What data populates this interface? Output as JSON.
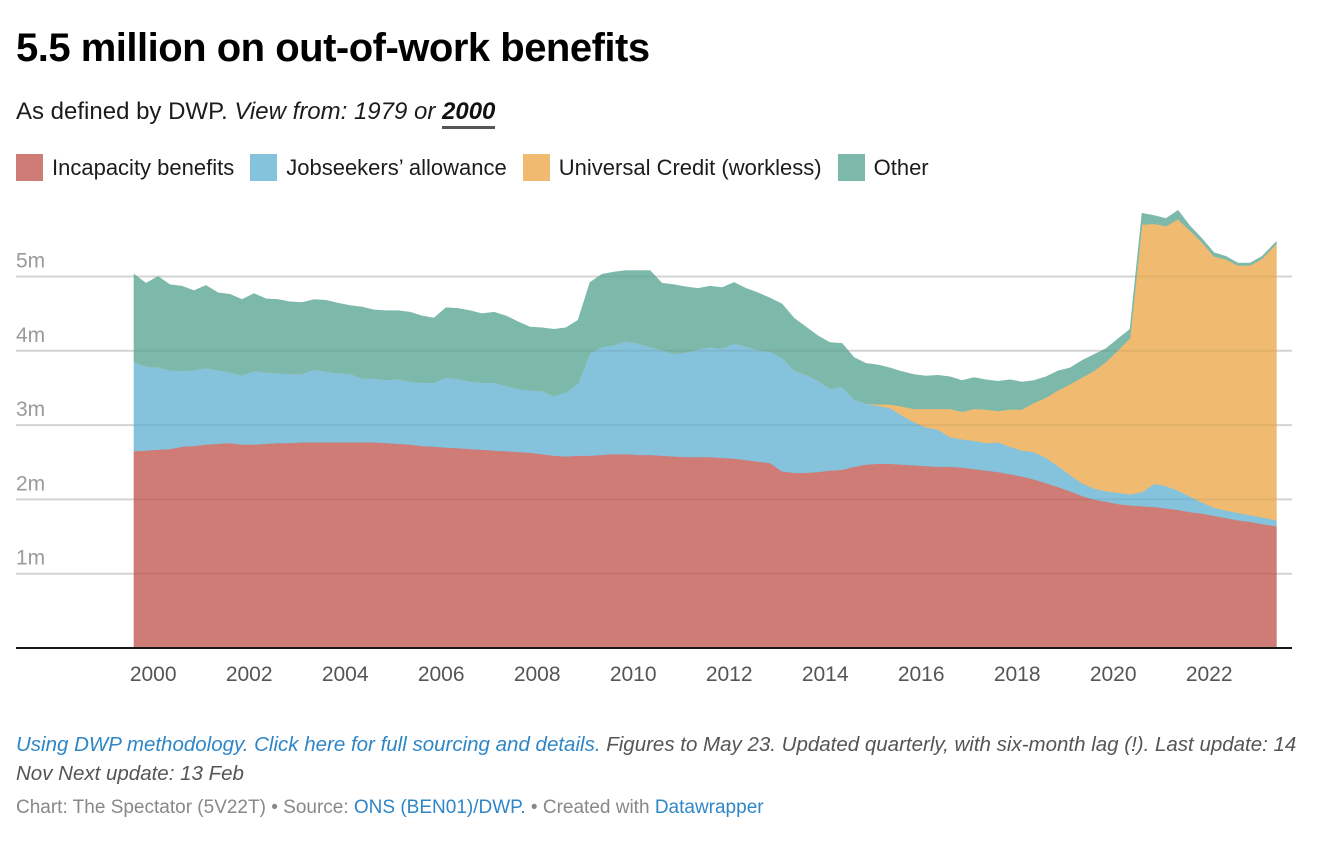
{
  "header": {
    "title": "5.5 million on out-of-work benefits",
    "subtitle_plain": "As defined by DWP.",
    "subtitle_view_from": "View from:",
    "subtitle_option_1979": "1979",
    "subtitle_or": "or",
    "subtitle_option_2000": "2000",
    "selected_view": "2000"
  },
  "legend": [
    {
      "label": "Incapacity benefits",
      "color": "#cf7b76"
    },
    {
      "label": "Jobseekers’ allowance",
      "color": "#85c2dc"
    },
    {
      "label": "Universal Credit (workless)",
      "color": "#f0bb70"
    },
    {
      "label": "Other",
      "color": "#7db9ab"
    }
  ],
  "notes": {
    "link_text": "Using DWP methodology. Click here for full sourcing and details.",
    "text": " Figures to May 23. Updated quarterly, with six-month lag (!). Last update: 14 Nov Next update: 13 Feb"
  },
  "footer": {
    "chart_prefix": "Chart: The Spectator (5V22T) • Source: ",
    "source_link": "ONS (BEN01)/DWP.",
    "created_prefix": " • Created with ",
    "tool_link": "Datawrapper"
  },
  "chart_data": {
    "type": "area",
    "stacked": true,
    "title": "5.5 million on out-of-work benefits",
    "xlabel": "",
    "ylabel": "",
    "x_ticks": [
      "2000",
      "2002",
      "2004",
      "2006",
      "2008",
      "2010",
      "2012",
      "2014",
      "2016",
      "2018",
      "2020",
      "2022"
    ],
    "y_ticks": [
      {
        "value": 1,
        "label": "1m"
      },
      {
        "value": 2,
        "label": "2m"
      },
      {
        "value": 3,
        "label": "3m"
      },
      {
        "value": 4,
        "label": "4m"
      },
      {
        "value": 5,
        "label": "5m"
      }
    ],
    "xlim": [
      1998.9,
      2023.8
    ],
    "ylim": [
      0,
      6
    ],
    "grid": true,
    "legend_position": "top-left",
    "units": "millions",
    "x": [
      1999.6,
      1999.85,
      2000.1,
      2000.35,
      2000.6,
      2000.85,
      2001.1,
      2001.35,
      2001.6,
      2001.85,
      2002.1,
      2002.35,
      2002.6,
      2002.85,
      2003.1,
      2003.35,
      2003.6,
      2003.85,
      2004.1,
      2004.35,
      2004.6,
      2004.85,
      2005.1,
      2005.35,
      2005.6,
      2005.85,
      2006.1,
      2006.35,
      2006.6,
      2006.85,
      2007.1,
      2007.35,
      2007.6,
      2007.85,
      2008.1,
      2008.35,
      2008.6,
      2008.85,
      2009.1,
      2009.35,
      2009.6,
      2009.85,
      2010.1,
      2010.35,
      2010.6,
      2010.85,
      2011.1,
      2011.35,
      2011.6,
      2011.85,
      2012.1,
      2012.35,
      2012.6,
      2012.85,
      2013.1,
      2013.35,
      2013.6,
      2013.85,
      2014.1,
      2014.35,
      2014.6,
      2014.85,
      2015.1,
      2015.35,
      2015.6,
      2015.85,
      2016.1,
      2016.35,
      2016.6,
      2016.85,
      2017.1,
      2017.35,
      2017.6,
      2017.85,
      2018.1,
      2018.35,
      2018.6,
      2018.85,
      2019.1,
      2019.35,
      2019.6,
      2019.85,
      2020.1,
      2020.35,
      2020.6,
      2020.85,
      2021.1,
      2021.35,
      2021.6,
      2021.85,
      2022.1,
      2022.35,
      2022.6,
      2022.85,
      2023.1,
      2023.4
    ],
    "series": [
      {
        "name": "Incapacity benefits",
        "color": "#cf7b76",
        "values": [
          2.65,
          2.66,
          2.67,
          2.68,
          2.71,
          2.72,
          2.74,
          2.75,
          2.76,
          2.74,
          2.74,
          2.75,
          2.76,
          2.76,
          2.77,
          2.77,
          2.77,
          2.77,
          2.77,
          2.77,
          2.77,
          2.76,
          2.75,
          2.74,
          2.72,
          2.71,
          2.7,
          2.69,
          2.68,
          2.67,
          2.66,
          2.65,
          2.64,
          2.63,
          2.61,
          2.59,
          2.58,
          2.59,
          2.59,
          2.6,
          2.61,
          2.61,
          2.6,
          2.6,
          2.59,
          2.58,
          2.57,
          2.57,
          2.57,
          2.56,
          2.55,
          2.53,
          2.51,
          2.49,
          2.38,
          2.36,
          2.36,
          2.37,
          2.39,
          2.4,
          2.44,
          2.47,
          2.48,
          2.48,
          2.47,
          2.46,
          2.45,
          2.44,
          2.44,
          2.43,
          2.41,
          2.39,
          2.37,
          2.34,
          2.31,
          2.27,
          2.22,
          2.17,
          2.11,
          2.05,
          2.0,
          1.97,
          1.94,
          1.92,
          1.91,
          1.9,
          1.88,
          1.86,
          1.83,
          1.81,
          1.78,
          1.75,
          1.72,
          1.7,
          1.67,
          1.64
        ]
      },
      {
        "name": "Jobseekers’ allowance",
        "color": "#85c2dc",
        "values": [
          1.2,
          1.13,
          1.11,
          1.06,
          1.02,
          1.02,
          1.03,
          0.99,
          0.95,
          0.93,
          0.99,
          0.96,
          0.94,
          0.93,
          0.92,
          0.98,
          0.95,
          0.93,
          0.92,
          0.86,
          0.86,
          0.85,
          0.87,
          0.85,
          0.85,
          0.86,
          0.94,
          0.93,
          0.91,
          0.9,
          0.91,
          0.88,
          0.85,
          0.84,
          0.85,
          0.8,
          0.86,
          0.97,
          1.38,
          1.45,
          1.47,
          1.52,
          1.5,
          1.45,
          1.42,
          1.38,
          1.41,
          1.45,
          1.48,
          1.47,
          1.55,
          1.53,
          1.5,
          1.5,
          1.53,
          1.38,
          1.32,
          1.23,
          1.1,
          1.12,
          0.91,
          0.82,
          0.78,
          0.75,
          0.66,
          0.58,
          0.52,
          0.5,
          0.4,
          0.38,
          0.38,
          0.37,
          0.4,
          0.37,
          0.35,
          0.37,
          0.34,
          0.28,
          0.22,
          0.17,
          0.15,
          0.14,
          0.15,
          0.15,
          0.19,
          0.31,
          0.3,
          0.26,
          0.21,
          0.15,
          0.11,
          0.1,
          0.1,
          0.09,
          0.09,
          0.08
        ]
      },
      {
        "name": "Universal Credit (workless)",
        "color": "#f0bb70",
        "values": [
          0,
          0,
          0,
          0,
          0,
          0,
          0,
          0,
          0,
          0,
          0,
          0,
          0,
          0,
          0,
          0,
          0,
          0,
          0,
          0,
          0,
          0,
          0,
          0,
          0,
          0,
          0,
          0,
          0,
          0,
          0,
          0,
          0,
          0,
          0,
          0,
          0,
          0,
          0,
          0,
          0,
          0,
          0,
          0,
          0,
          0,
          0,
          0,
          0,
          0,
          0,
          0,
          0,
          0,
          0,
          0,
          0,
          0,
          0,
          0,
          0,
          0,
          0.02,
          0.05,
          0.12,
          0.18,
          0.25,
          0.28,
          0.38,
          0.37,
          0.43,
          0.45,
          0.42,
          0.5,
          0.55,
          0.66,
          0.81,
          1.02,
          1.22,
          1.42,
          1.58,
          1.74,
          1.92,
          2.1,
          3.6,
          3.5,
          3.5,
          3.65,
          3.58,
          3.5,
          3.38,
          3.38,
          3.33,
          3.36,
          3.48,
          3.72
        ]
      },
      {
        "name": "Other",
        "color": "#7db9ab",
        "values": [
          1.18,
          1.12,
          1.22,
          1.15,
          1.14,
          1.07,
          1.11,
          1.04,
          1.05,
          1.02,
          1.04,
          0.99,
          0.99,
          0.97,
          0.96,
          0.94,
          0.96,
          0.94,
          0.92,
          0.96,
          0.92,
          0.93,
          0.92,
          0.93,
          0.9,
          0.87,
          0.94,
          0.95,
          0.95,
          0.93,
          0.95,
          0.94,
          0.9,
          0.85,
          0.85,
          0.9,
          0.87,
          0.85,
          0.95,
          0.98,
          0.98,
          0.95,
          0.98,
          1.03,
          0.9,
          0.93,
          0.88,
          0.82,
          0.82,
          0.82,
          0.82,
          0.78,
          0.77,
          0.72,
          0.72,
          0.7,
          0.64,
          0.6,
          0.62,
          0.58,
          0.56,
          0.54,
          0.53,
          0.49,
          0.47,
          0.46,
          0.44,
          0.45,
          0.43,
          0.42,
          0.42,
          0.4,
          0.4,
          0.4,
          0.37,
          0.3,
          0.28,
          0.26,
          0.22,
          0.23,
          0.22,
          0.18,
          0.15,
          0.12,
          0.15,
          0.11,
          0.1,
          0.12,
          0.06,
          0.05,
          0.05,
          0.04,
          0.03,
          0.03,
          0.03,
          0.03
        ]
      }
    ]
  }
}
